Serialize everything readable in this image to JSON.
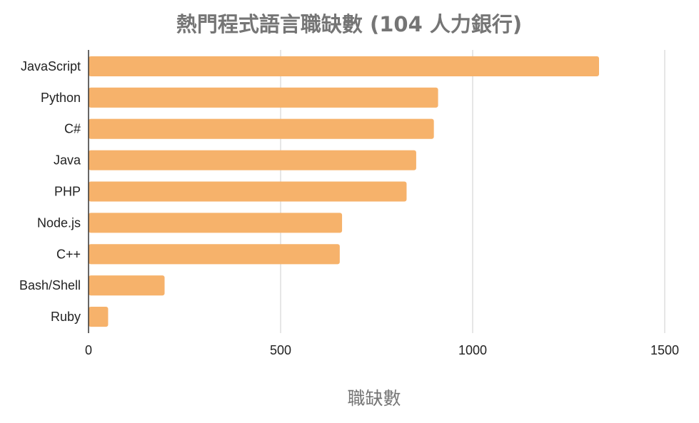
{
  "chart_data": {
    "type": "bar",
    "orientation": "horizontal",
    "title": "熱門程式語言職缺數 (104 人力銀行)",
    "xlabel": "職缺數",
    "ylabel": "",
    "categories": [
      "JavaScript",
      "Python",
      "C#",
      "Java",
      "PHP",
      "Node.js",
      "C++",
      "Bash/Shell",
      "Ruby"
    ],
    "values": [
      1329,
      910,
      899,
      853,
      828,
      660,
      654,
      198,
      51
    ],
    "xlim": [
      0,
      1500
    ],
    "xticks": [
      0,
      500,
      1000,
      1500
    ],
    "grid": true,
    "legend": "none",
    "bar_color": "#f6b26b",
    "grid_color": "#cccccc",
    "axis_color": "#333333"
  }
}
